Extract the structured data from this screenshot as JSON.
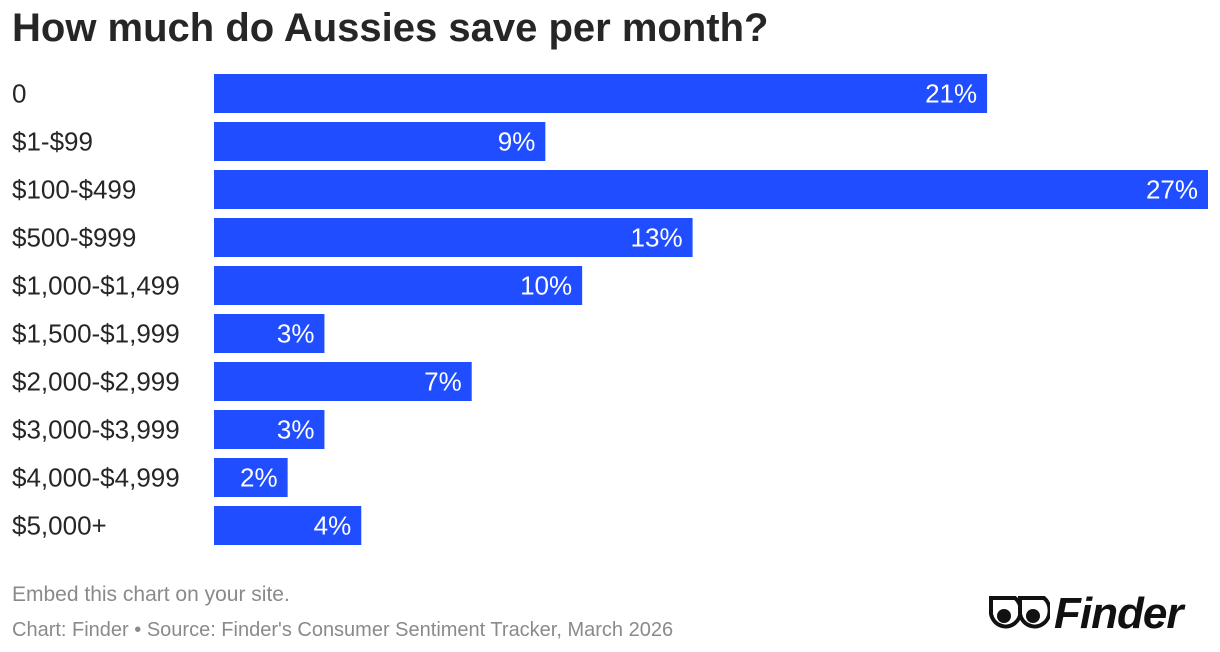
{
  "chart_data": {
    "type": "bar",
    "orientation": "horizontal",
    "title": "How much do Aussies save per month?",
    "categories": [
      "0",
      "$1-$99",
      "$100-$499",
      "$500-$999",
      "$1,000-$1,499",
      "$1,500-$1,999",
      "$2,000-$2,999",
      "$3,000-$3,999",
      "$4,000-$4,999",
      "$5,000+"
    ],
    "values": [
      21,
      9,
      27,
      13,
      10,
      3,
      7,
      3,
      2,
      4
    ],
    "value_labels": [
      "21%",
      "9%",
      "27%",
      "13%",
      "10%",
      "3%",
      "7%",
      "3%",
      "2%",
      "4%"
    ],
    "xlim": [
      0,
      27
    ],
    "bar_color": "#1f4dff",
    "grid": false,
    "legend": "none"
  },
  "footer": {
    "embed_text": "Embed this chart on your site.",
    "credits": "Chart: Finder • Source: Finder's Consumer Sentiment Tracker, March 2026"
  },
  "brand": {
    "logo_text": "Finder",
    "logo_icon": "eyes-icon"
  }
}
